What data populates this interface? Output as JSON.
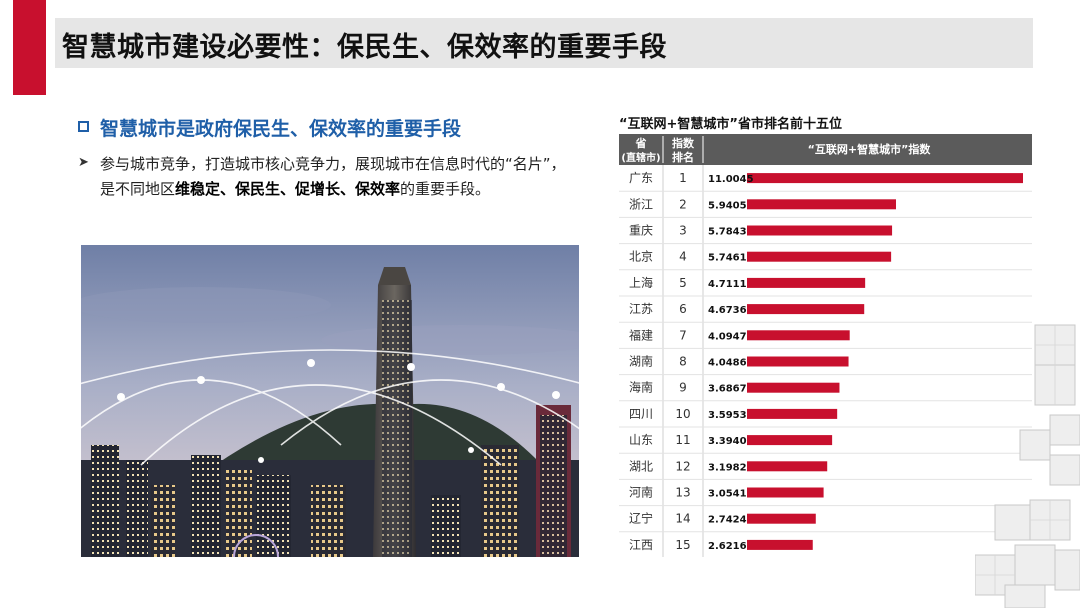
{
  "page_title": "智慧城市建设必要性：保民生、保效率的重要手段",
  "section_heading": "智慧城市是政府保民生、保效率的重要手段",
  "body": {
    "part1": "参与城市竞争，打造城市核心竞争力，展现城市在信息时代的“名片”，是不同地区",
    "bold1": "维稳定、保民生、促增长、保效率",
    "part2": "的重要手段。"
  },
  "chart_data": {
    "type": "bar",
    "title": "“互联网+智慧城市”省市排名前十五位",
    "header": {
      "col1_line1": "省",
      "col1_line2": "(直辖市)",
      "col2_line1": "指数",
      "col2_line2": "排名",
      "col3": "“互联网+智慧城市”指数"
    },
    "categories": [
      "广东",
      "浙江",
      "重庆",
      "北京",
      "上海",
      "江苏",
      "福建",
      "湖南",
      "海南",
      "四川",
      "山东",
      "湖北",
      "河南",
      "辽宁",
      "江西"
    ],
    "ranks": [
      1,
      2,
      3,
      4,
      5,
      6,
      7,
      8,
      9,
      10,
      11,
      12,
      13,
      14,
      15
    ],
    "values": [
      11.0045,
      5.9405,
      5.7843,
      5.7461,
      4.7111,
      4.6736,
      4.0947,
      4.0486,
      3.6867,
      3.5953,
      3.394,
      3.1982,
      3.0541,
      2.7424,
      2.6216
    ],
    "value_labels": [
      "11.0045",
      "5.9405",
      "5.7843",
      "5.7461",
      "4.7111",
      "4.6736",
      "4.0947",
      "4.0486",
      "3.6867",
      "3.5953",
      "3.3940",
      "3.1982",
      "3.0541",
      "2.7424",
      "2.6216"
    ],
    "bar_color": "#c8102e",
    "header_color": "#5b5b5b"
  },
  "colors": {
    "accent": "#c8102e",
    "heading_blue": "#1f5fa8"
  }
}
